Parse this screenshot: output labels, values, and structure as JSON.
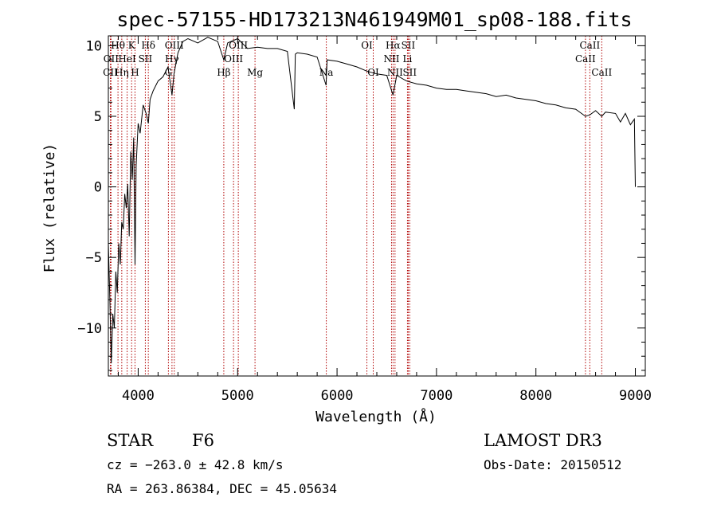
{
  "chart_data": {
    "type": "line",
    "title": "spec-57155-HD173213N461949M01_sp08-188.fits",
    "xlabel": "Wavelength (Å)",
    "ylabel": "Flux (relative)",
    "xlim": [
      3700,
      9100
    ],
    "ylim": [
      -13.4,
      10.7
    ],
    "xticks": [
      4000,
      5000,
      6000,
      7000,
      8000,
      9000
    ],
    "xtick_labels": [
      "4000",
      "5000",
      "6000",
      "7000",
      "8000",
      "9000"
    ],
    "yticks": [
      -10,
      -5,
      0,
      5,
      10
    ],
    "ytick_labels": [
      "−10",
      "−5",
      "0",
      "5",
      "10"
    ],
    "series": [
      {
        "name": "flux",
        "x": [
          3700,
          3715,
          3730,
          3745,
          3760,
          3775,
          3790,
          3805,
          3820,
          3835,
          3850,
          3865,
          3880,
          3895,
          3910,
          3925,
          3940,
          3955,
          3968,
          3980,
          4000,
          4020,
          4050,
          4080,
          4102,
          4120,
          4150,
          4200,
          4250,
          4300,
          4340,
          4360,
          4400,
          4450,
          4500,
          4600,
          4700,
          4800,
          4861,
          4900,
          5000,
          5100,
          5200,
          5300,
          5400,
          5500,
          5570,
          5580,
          5600,
          5700,
          5800,
          5890,
          5900,
          6000,
          6100,
          6200,
          6300,
          6400,
          6500,
          6563,
          6600,
          6700,
          6800,
          6900,
          7000,
          7100,
          7200,
          7300,
          7400,
          7500,
          7600,
          7700,
          7800,
          7900,
          8000,
          8100,
          8200,
          8300,
          8400,
          8498,
          8542,
          8600,
          8662,
          8700,
          8800,
          8850,
          8900,
          8950,
          8990,
          9000
        ],
        "y": [
          -4.0,
          -8.0,
          -12.5,
          -9.0,
          -10.0,
          -6.0,
          -7.5,
          -4.0,
          -5.5,
          -2.5,
          -3.0,
          -0.5,
          -1.5,
          0.2,
          -3.5,
          2.5,
          0.5,
          3.5,
          -5.5,
          1.5,
          4.5,
          3.8,
          5.8,
          5.2,
          4.5,
          6.2,
          6.8,
          7.5,
          7.8,
          8.5,
          6.5,
          8.0,
          9.5,
          10.3,
          10.5,
          10.2,
          10.6,
          10.3,
          9.0,
          10.2,
          10.5,
          9.8,
          9.9,
          9.8,
          9.8,
          9.6,
          5.5,
          9.4,
          9.5,
          9.4,
          9.2,
          7.2,
          9.0,
          8.9,
          8.7,
          8.5,
          8.2,
          8.0,
          7.9,
          6.5,
          7.9,
          7.5,
          7.3,
          7.2,
          7.0,
          6.9,
          6.9,
          6.8,
          6.7,
          6.6,
          6.4,
          6.5,
          6.3,
          6.2,
          6.1,
          5.9,
          5.8,
          5.6,
          5.5,
          5.0,
          5.1,
          5.4,
          5.0,
          5.3,
          5.2,
          4.6,
          5.2,
          4.4,
          4.8,
          0.0
        ]
      }
    ],
    "spectral_lines": [
      {
        "label": "CII",
        "wavelength": 3720,
        "row": 3
      },
      {
        "label": "OII",
        "wavelength": 3727,
        "row": 2
      },
      {
        "label": "Hθ",
        "wavelength": 3797,
        "row": 1
      },
      {
        "label": "Hη",
        "wavelength": 3835,
        "row": 3
      },
      {
        "label": "HeI",
        "wavelength": 3889,
        "row": 2
      },
      {
        "label": "K",
        "wavelength": 3934,
        "row": 1
      },
      {
        "label": "H",
        "wavelength": 3968,
        "row": 3
      },
      {
        "label": "SII",
        "wavelength": 4072,
        "row": 2
      },
      {
        "label": "Hδ",
        "wavelength": 4102,
        "row": 1
      },
      {
        "label": "G",
        "wavelength": 4304,
        "row": 3
      },
      {
        "label": "Hγ",
        "wavelength": 4340,
        "row": 2
      },
      {
        "label": "OIII",
        "wavelength": 4363,
        "row": 1
      },
      {
        "label": "Hβ",
        "wavelength": 4861,
        "row": 3
      },
      {
        "label": "OIII",
        "wavelength": 4959,
        "row": 2
      },
      {
        "label": "OIII",
        "wavelength": 5007,
        "row": 1
      },
      {
        "label": "Mg",
        "wavelength": 5175,
        "row": 3
      },
      {
        "label": "Na",
        "wavelength": 5892,
        "row": 3
      },
      {
        "label": "OI",
        "wavelength": 6300,
        "row": 1
      },
      {
        "label": "OI",
        "wavelength": 6364,
        "row": 3
      },
      {
        "label": "NII",
        "wavelength": 6548,
        "row": 2
      },
      {
        "label": "Hα",
        "wavelength": 6563,
        "row": 1
      },
      {
        "label": "NII",
        "wavelength": 6583,
        "row": 3
      },
      {
        "label": "Li",
        "wavelength": 6708,
        "row": 2
      },
      {
        "label": "SII",
        "wavelength": 6716,
        "row": 1
      },
      {
        "label": "SII",
        "wavelength": 6731,
        "row": 3
      },
      {
        "label": "CaII",
        "wavelength": 8498,
        "row": 2
      },
      {
        "label": "CaII",
        "wavelength": 8542,
        "row": 1
      },
      {
        "label": "CaII",
        "wavelength": 8662,
        "row": 3
      }
    ],
    "grid": false,
    "legend": "none"
  },
  "info": {
    "object_class": "STAR",
    "subclass": "F6",
    "survey": "LAMOST DR3",
    "velocity": "cz = −263.0 ± 42.8 km/s",
    "obs_date": "Obs-Date: 20150512",
    "coords": "RA = 263.86384, DEC =  45.05634"
  },
  "colors": {
    "line_markers": "#b00000",
    "spectrum": "#000000"
  }
}
